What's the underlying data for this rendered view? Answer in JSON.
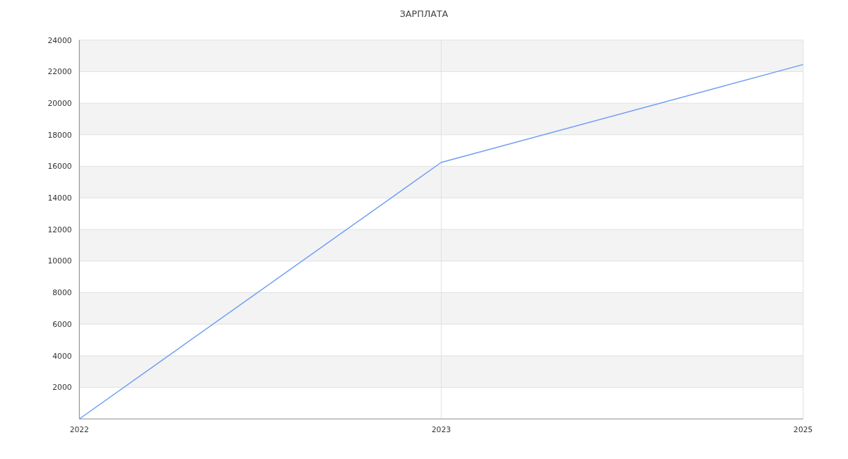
{
  "chart_data": {
    "type": "line",
    "title": "ЗАРПЛАТА",
    "categories": [
      "2022",
      "2023",
      "2025"
    ],
    "series": [
      {
        "color": "#6d9cf3",
        "values": [
          0,
          16250,
          22450
        ]
      }
    ],
    "ylim": [
      0,
      24000
    ],
    "yticks": [
      2000,
      4000,
      6000,
      8000,
      10000,
      12000,
      14000,
      16000,
      18000,
      20000,
      22000,
      24000
    ],
    "grid": true,
    "marker": "none",
    "line_style": "solid"
  }
}
